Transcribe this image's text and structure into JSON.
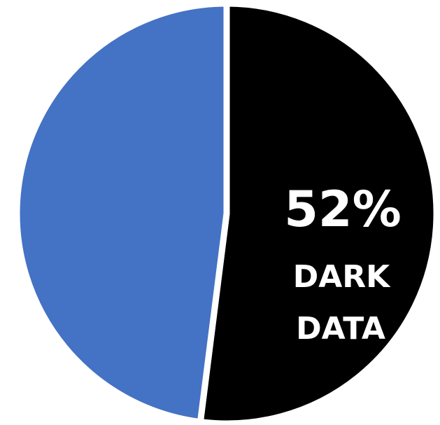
{
  "chart_data": {
    "type": "pie",
    "slices": [
      {
        "label_lines": [
          "DARK",
          "DATA"
        ],
        "value": 52,
        "value_label": "52%",
        "color": "#000000"
      },
      {
        "value": 48,
        "color": "#4472C4"
      }
    ],
    "start_angle_deg": 0,
    "direction": "clockwise",
    "slice_separator_color": "#ffffff"
  }
}
